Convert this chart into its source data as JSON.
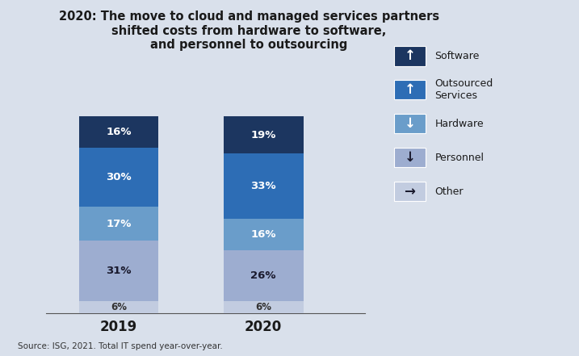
{
  "title": "2020: The move to cloud and managed services partners\nshifted costs from hardware to software,\nand personnel to outsourcing",
  "years": [
    "2019",
    "2020"
  ],
  "categories": [
    "Other",
    "Personnel",
    "Hardware",
    "Outsourced Services",
    "Software"
  ],
  "values": {
    "2019": [
      6,
      31,
      17,
      30,
      16
    ],
    "2020": [
      6,
      26,
      16,
      33,
      19
    ]
  },
  "colors": [
    "#c2cce0",
    "#9dadd0",
    "#6a9dca",
    "#2d6db5",
    "#1c3660"
  ],
  "label_colors": [
    "#333333",
    "#1a1a2e",
    "#ffffff",
    "#ffffff",
    "#ffffff"
  ],
  "source": "Source: ISG, 2021. Total IT spend year-over-year.",
  "background_color": "#d9e0eb",
  "legend_labels": [
    "Software",
    "Outsourced\nServices",
    "Hardware",
    "Personnel",
    "Other"
  ],
  "legend_colors": [
    "#1c3660",
    "#2d6db5",
    "#6a9dca",
    "#9dadd0",
    "#c2cce0"
  ],
  "legend_arrow_colors": [
    "white",
    "white",
    "white",
    "#1a1a2e",
    "#1a1a2e"
  ],
  "legend_arrows": [
    "↑",
    "↑",
    "↓",
    "↓",
    "→"
  ]
}
